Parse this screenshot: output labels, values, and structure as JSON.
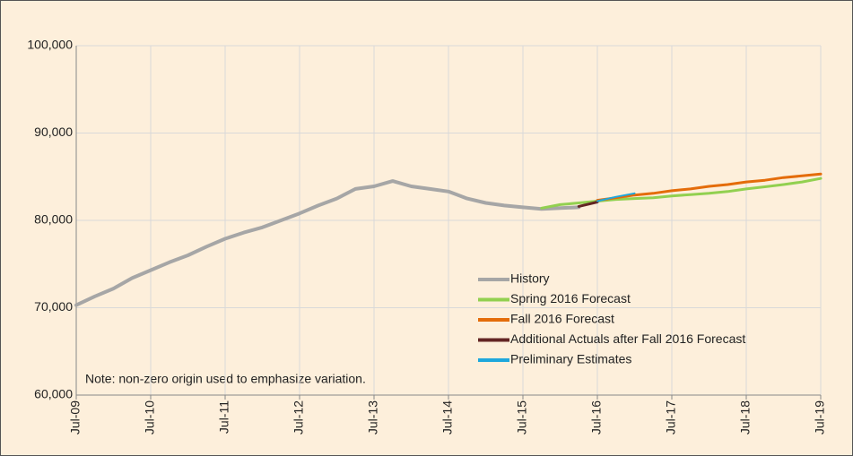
{
  "chart_data": {
    "type": "line",
    "categories": [
      "Jul-09",
      null,
      null,
      null,
      "Jul-10",
      null,
      null,
      null,
      "Jul-11",
      null,
      null,
      null,
      "Jul-12",
      null,
      null,
      null,
      "Jul-13",
      null,
      null,
      null,
      "Jul-14",
      null,
      null,
      null,
      "Jul-15",
      null,
      null,
      null,
      "Jul-16",
      null,
      null,
      null,
      "Jul-17",
      null,
      null,
      null,
      "Jul-18",
      null,
      null,
      null,
      "Jul-19"
    ],
    "series": [
      {
        "name": "History",
        "color": "#a6a6a6",
        "width": 4,
        "values": [
          70300,
          71300,
          72200,
          73400,
          74300,
          75200,
          76000,
          77000,
          77900,
          78600,
          79200,
          80000,
          80800,
          81700,
          82500,
          83600,
          83900,
          84500,
          83900,
          83600,
          83300,
          82500,
          82000,
          81700,
          81500,
          81300,
          81400,
          81500,
          null,
          null,
          null,
          null,
          null,
          null,
          null,
          null,
          null,
          null,
          null,
          null,
          null
        ]
      },
      {
        "name": "Spring 2016 Forecast",
        "color": "#92d050",
        "width": 3,
        "values": [
          null,
          null,
          null,
          null,
          null,
          null,
          null,
          null,
          null,
          null,
          null,
          null,
          null,
          null,
          null,
          null,
          null,
          null,
          null,
          null,
          null,
          null,
          null,
          null,
          null,
          81400,
          81800,
          82000,
          82200,
          82400,
          82500,
          82600,
          82800,
          82950,
          83100,
          83300,
          83600,
          83850,
          84100,
          84400,
          84800
        ]
      },
      {
        "name": "Fall 2016 Forecast",
        "color": "#e46c0a",
        "width": 3,
        "values": [
          null,
          null,
          null,
          null,
          null,
          null,
          null,
          null,
          null,
          null,
          null,
          null,
          null,
          null,
          null,
          null,
          null,
          null,
          null,
          null,
          null,
          null,
          null,
          null,
          null,
          null,
          null,
          null,
          82300,
          82600,
          82900,
          83100,
          83400,
          83600,
          83900,
          84100,
          84400,
          84600,
          84900,
          85100,
          85300
        ]
      },
      {
        "name": "Additional Actuals after Fall 2016 Forecast",
        "color": "#632523",
        "width": 3,
        "values": [
          null,
          null,
          null,
          null,
          null,
          null,
          null,
          null,
          null,
          null,
          null,
          null,
          null,
          null,
          null,
          null,
          null,
          null,
          null,
          null,
          null,
          null,
          null,
          null,
          null,
          null,
          null,
          81600,
          82100,
          null,
          null,
          null,
          null,
          null,
          null,
          null,
          null,
          null,
          null,
          null,
          null
        ]
      },
      {
        "name": "Preliminary Estimates",
        "color": "#1ea7dc",
        "width": 2,
        "values": [
          null,
          null,
          null,
          null,
          null,
          null,
          null,
          null,
          null,
          null,
          null,
          null,
          null,
          null,
          null,
          null,
          null,
          null,
          null,
          null,
          null,
          null,
          null,
          null,
          null,
          null,
          null,
          null,
          82200,
          82700,
          83100,
          null,
          null,
          null,
          null,
          null,
          null,
          null,
          null,
          null,
          null
        ]
      }
    ],
    "ylim": [
      60000,
      100000
    ],
    "yticks": [
      {
        "value": 60000,
        "label": "60,000"
      },
      {
        "value": 70000,
        "label": "70,000"
      },
      {
        "value": 80000,
        "label": "80,000"
      },
      {
        "value": 90000,
        "label": "90,000"
      },
      {
        "value": 100000,
        "label": "100,000"
      }
    ],
    "grid": true,
    "annotation": "Note: non-zero origin used to emphasize variation."
  }
}
